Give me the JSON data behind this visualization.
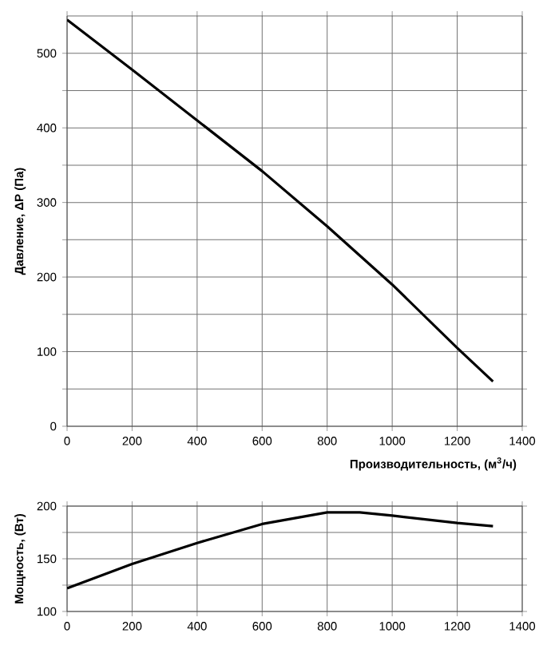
{
  "chart_data": [
    {
      "type": "line",
      "xlabel": "Производительность, (м$^{3}$/ч)",
      "ylabel": "Давление, ΔР (Па)",
      "x": [
        0,
        200,
        400,
        600,
        800,
        1000,
        1200,
        1310
      ],
      "series": [
        {
          "color": "#000000",
          "values": [
            545,
            478,
            410,
            342,
            268,
            190,
            105,
            60
          ]
        }
      ],
      "xlim": [
        0,
        1400
      ],
      "xticks": [
        0,
        200,
        400,
        600,
        800,
        1000,
        1200,
        1400
      ],
      "ylim": [
        0,
        550
      ],
      "yticks": [
        0,
        {
          "value": 50,
          "label": null
        },
        100,
        {
          "value": 150,
          "label": null
        },
        200,
        {
          "value": 250,
          "label": null
        },
        300,
        {
          "value": 350,
          "label": null
        },
        400,
        {
          "value": 450,
          "label": null
        },
        500
      ],
      "grid": true
    },
    {
      "type": "line",
      "ylabel": "Мощность, (Вт)",
      "x": [
        0,
        200,
        400,
        600,
        800,
        900,
        1000,
        1200,
        1310
      ],
      "series": [
        {
          "color": "#000000",
          "values": [
            122,
            145,
            165,
            183,
            194,
            194,
            191,
            184,
            181
          ]
        }
      ],
      "xlim": [
        0,
        1400
      ],
      "xticks": [
        0,
        200,
        400,
        600,
        800,
        1000,
        1200,
        1400
      ],
      "ylim": [
        100,
        200
      ],
      "yticks": [
        100,
        {
          "value": 125,
          "label": null
        },
        150,
        {
          "value": 175,
          "label": null
        },
        200
      ],
      "grid": true
    }
  ]
}
